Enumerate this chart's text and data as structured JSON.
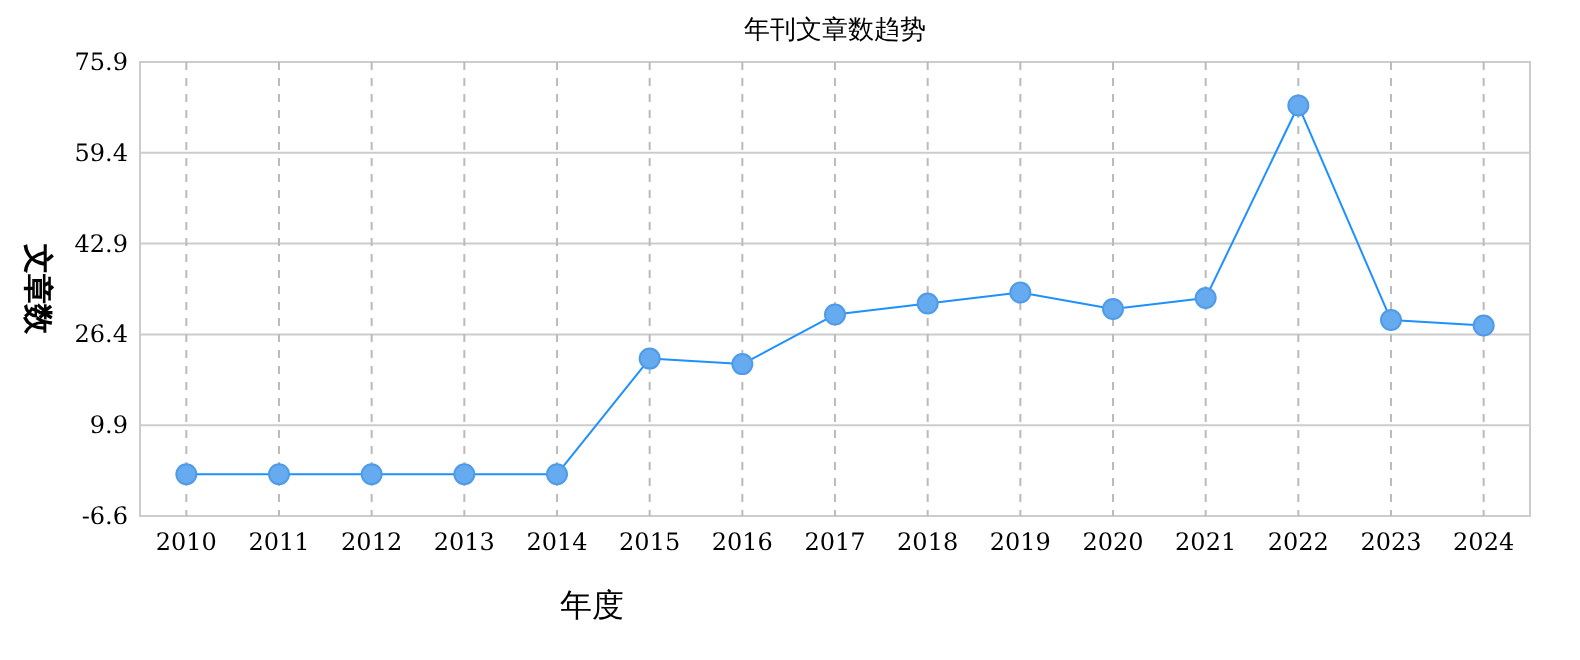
{
  "chart_data": {
    "type": "line",
    "title": "年刊文章数趋势",
    "xlabel": "年度",
    "ylabel": "文章数",
    "categories": [
      "2010",
      "2011",
      "2012",
      "2013",
      "2014",
      "2015",
      "2016",
      "2017",
      "2018",
      "2019",
      "2020",
      "2021",
      "2022",
      "2023",
      "2024"
    ],
    "series": [
      {
        "color": "#1e90ff",
        "values": [
          1,
          1,
          1,
          1,
          1,
          22,
          21,
          30,
          32,
          34,
          31,
          33,
          68,
          29,
          28
        ]
      }
    ],
    "ylim": [
      -6.6,
      75.9
    ],
    "yticks": [
      -6.6,
      9.9,
      26.4,
      42.9,
      59.4,
      75.9
    ],
    "grid": true,
    "marker": "circle",
    "line_style": "solid"
  }
}
